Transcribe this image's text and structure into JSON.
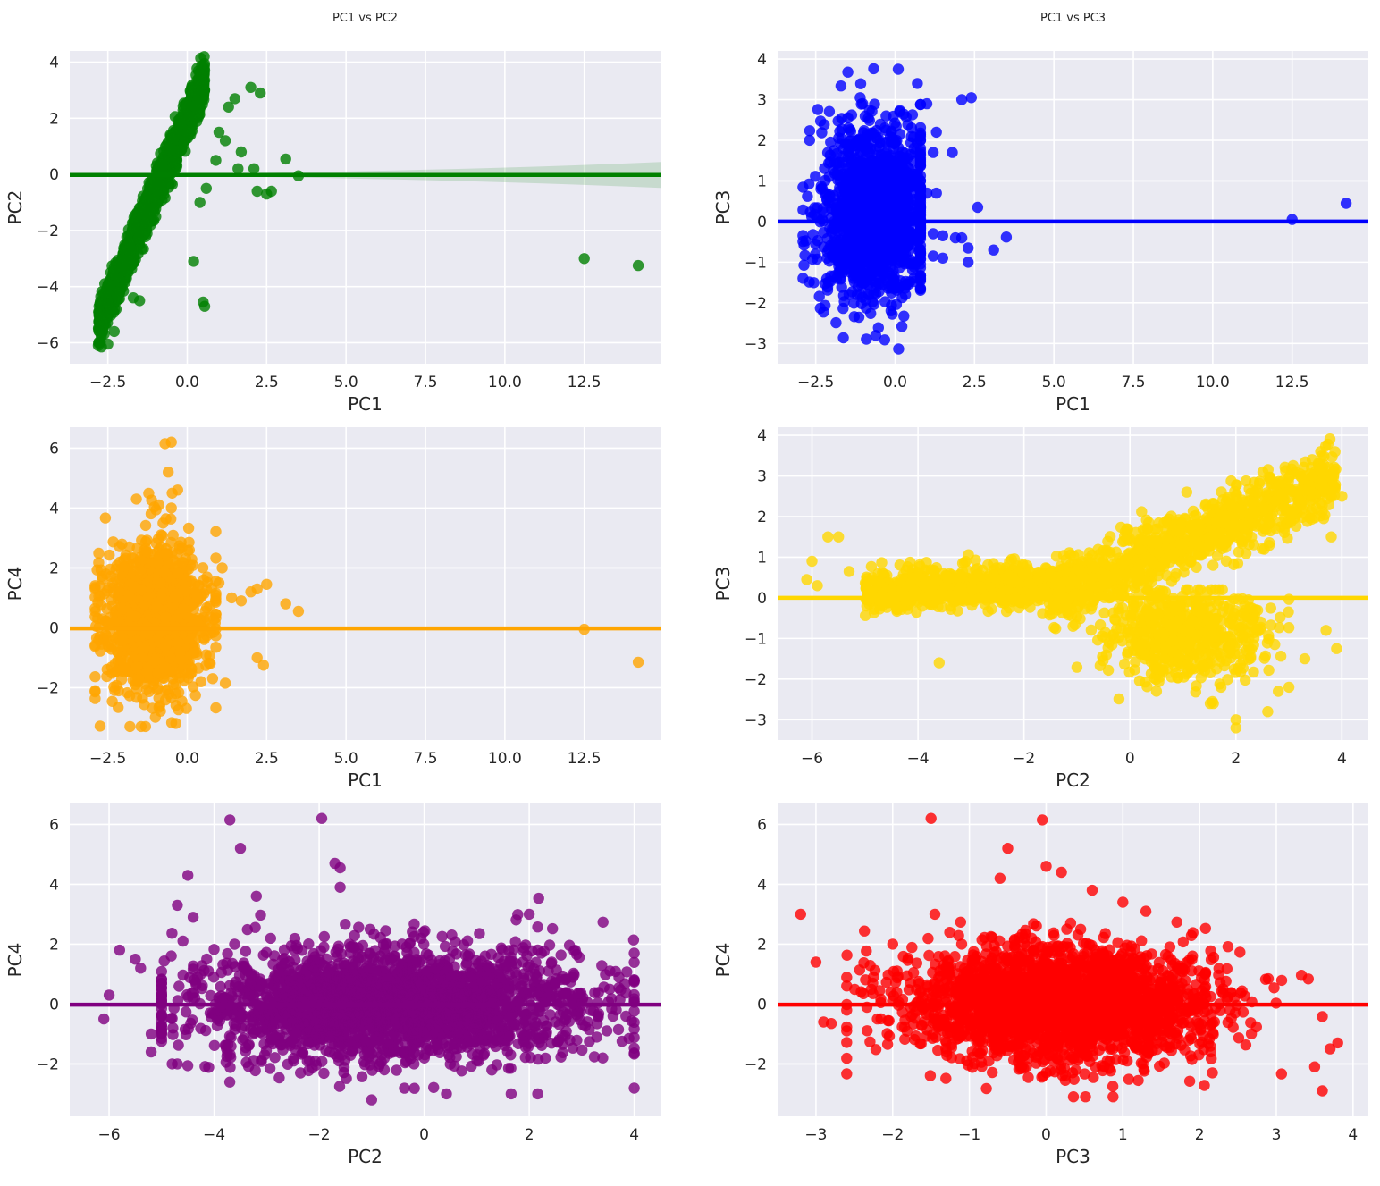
{
  "figure_background": "#ffffff",
  "panel_background": "#eaeaf2",
  "grid_color": "#ffffff",
  "chart_data": [
    {
      "type": "scatter",
      "title": "PC1 vs PC2",
      "xlabel": "PC1",
      "ylabel": "PC2",
      "xlim": [
        -3.7,
        14.9
      ],
      "ylim": [
        -6.75,
        4.4
      ],
      "xticks": [
        -2.5,
        0.0,
        2.5,
        5.0,
        7.5,
        10.0,
        12.5
      ],
      "xtick_labels": [
        "−2.5",
        "0.0",
        "2.5",
        "5.0",
        "7.5",
        "10.0",
        "12.5"
      ],
      "yticks": [
        -6,
        -4,
        -2,
        0,
        2,
        4
      ],
      "ytick_labels": [
        "−6",
        "−4",
        "−2",
        "0",
        "2",
        "4"
      ],
      "color": "#008000",
      "grid": true,
      "regression_line": {
        "slope": 0.0,
        "intercept": -0.02,
        "ci_start": 0.03,
        "ci_end": 0.46
      },
      "cloud": {
        "type": "band",
        "n": 1400,
        "xr": [
          -2.8,
          0.55
        ],
        "slope": 2.6,
        "x0": -0.3,
        "y0": 1.2,
        "spread": 0.7
      },
      "points": [
        [
          -2.8,
          -6.1
        ],
        [
          -2.7,
          -6.15
        ],
        [
          -2.5,
          -6.05
        ],
        [
          -2.3,
          -5.6
        ],
        [
          -1.7,
          -4.4
        ],
        [
          -1.5,
          -4.5
        ],
        [
          0.55,
          -4.7
        ],
        [
          0.5,
          -4.55
        ],
        [
          0.2,
          -3.1
        ],
        [
          0.4,
          -1.0
        ],
        [
          0.6,
          -0.5
        ],
        [
          0.9,
          0.5
        ],
        [
          1.0,
          1.5
        ],
        [
          1.3,
          2.4
        ],
        [
          1.5,
          2.7
        ],
        [
          1.2,
          1.2
        ],
        [
          1.7,
          0.8
        ],
        [
          1.6,
          0.2
        ],
        [
          2.0,
          3.1
        ],
        [
          2.3,
          2.9
        ],
        [
          2.1,
          0.2
        ],
        [
          2.2,
          -0.6
        ],
        [
          2.5,
          -0.7
        ],
        [
          2.65,
          -0.6
        ],
        [
          3.1,
          0.55
        ],
        [
          3.5,
          -0.05
        ],
        [
          12.5,
          -3.0
        ],
        [
          14.2,
          -3.25
        ]
      ]
    },
    {
      "type": "scatter",
      "title": "PC1 vs PC3",
      "xlabel": "PC1",
      "ylabel": "PC3",
      "xlim": [
        -3.7,
        14.9
      ],
      "ylim": [
        -3.5,
        4.2
      ],
      "xticks": [
        -2.5,
        0.0,
        2.5,
        5.0,
        7.5,
        10.0,
        12.5
      ],
      "xtick_labels": [
        "−2.5",
        "0.0",
        "2.5",
        "5.0",
        "7.5",
        "10.0",
        "12.5"
      ],
      "yticks": [
        -3,
        -2,
        -1,
        0,
        1,
        2,
        3,
        4
      ],
      "ytick_labels": [
        "−3",
        "−2",
        "−1",
        "0",
        "1",
        "2",
        "3",
        "4"
      ],
      "color": "#0000ff",
      "grid": true,
      "regression_line": {
        "slope": 0.0,
        "intercept": 0.0,
        "ci_start": 0.0,
        "ci_end": 0.0
      },
      "cloud": {
        "type": "blob",
        "n": 1400,
        "cx": -0.6,
        "cy": 0.2,
        "sx": 0.85,
        "sy": 1.1,
        "xr": [
          -2.9,
          0.8
        ],
        "yr": [
          -3.2,
          3.8
        ]
      },
      "points": [
        [
          0.1,
          3.75
        ],
        [
          0.7,
          3.4
        ],
        [
          1.0,
          2.9
        ],
        [
          1.3,
          2.2
        ],
        [
          1.2,
          1.7
        ],
        [
          1.8,
          1.7
        ],
        [
          2.1,
          3.0
        ],
        [
          2.4,
          3.05
        ],
        [
          1.0,
          0.7
        ],
        [
          1.3,
          0.7
        ],
        [
          1.2,
          -0.3
        ],
        [
          1.5,
          -0.35
        ],
        [
          1.9,
          -0.4
        ],
        [
          2.1,
          -0.4
        ],
        [
          2.3,
          -0.65
        ],
        [
          2.3,
          -1.0
        ],
        [
          2.6,
          0.35
        ],
        [
          3.1,
          -0.7
        ],
        [
          3.5,
          -0.38
        ],
        [
          1.2,
          -0.85
        ],
        [
          1.5,
          -0.9
        ],
        [
          12.5,
          0.05
        ],
        [
          14.2,
          0.45
        ]
      ]
    },
    {
      "type": "scatter",
      "title": "",
      "xlabel": "PC1",
      "ylabel": "PC4",
      "xlim": [
        -3.7,
        14.9
      ],
      "ylim": [
        -3.75,
        6.7
      ],
      "xticks": [
        -2.5,
        0.0,
        2.5,
        5.0,
        7.5,
        10.0,
        12.5
      ],
      "xtick_labels": [
        "−2.5",
        "0.0",
        "2.5",
        "5.0",
        "7.5",
        "10.0",
        "12.5"
      ],
      "yticks": [
        -2,
        0,
        2,
        4,
        6
      ],
      "ytick_labels": [
        "−2",
        "0",
        "2",
        "4",
        "6"
      ],
      "color": "#ffa500",
      "grid": true,
      "regression_line": {
        "slope": 0.0,
        "intercept": -0.02,
        "ci_start": 0.0,
        "ci_end": 0.0
      },
      "cloud": {
        "type": "blob",
        "n": 1400,
        "cx": -1.0,
        "cy": 0.3,
        "sx": 0.8,
        "sy": 1.25,
        "xr": [
          -2.9,
          0.9
        ],
        "yr": [
          -3.3,
          4.5
        ]
      },
      "points": [
        [
          -1.6,
          4.3
        ],
        [
          -0.7,
          6.15
        ],
        [
          -0.5,
          6.2
        ],
        [
          -0.6,
          5.2
        ],
        [
          -0.3,
          4.6
        ],
        [
          -0.5,
          4.0
        ],
        [
          1.0,
          1.5
        ],
        [
          1.1,
          2.0
        ],
        [
          1.4,
          1.0
        ],
        [
          1.7,
          0.9
        ],
        [
          2.0,
          1.2
        ],
        [
          2.2,
          1.3
        ],
        [
          2.5,
          1.45
        ],
        [
          3.1,
          0.8
        ],
        [
          3.5,
          0.55
        ],
        [
          2.2,
          -1.0
        ],
        [
          2.4,
          -1.25
        ],
        [
          1.2,
          -1.85
        ],
        [
          0.8,
          -1.7
        ],
        [
          12.5,
          -0.05
        ],
        [
          14.2,
          -1.15
        ]
      ]
    },
    {
      "type": "scatter",
      "title": "",
      "xlabel": "PC2",
      "ylabel": "PC3",
      "xlim": [
        -6.65,
        4.5
      ],
      "ylim": [
        -3.5,
        4.2
      ],
      "xticks": [
        -6,
        -4,
        -2,
        0,
        2,
        4
      ],
      "xtick_labels": [
        "−6",
        "−4",
        "−2",
        "0",
        "2",
        "4"
      ],
      "yticks": [
        -3,
        -2,
        -1,
        0,
        1,
        2,
        3,
        4
      ],
      "ytick_labels": [
        "−3",
        "−2",
        "−1",
        "0",
        "1",
        "2",
        "3",
        "4"
      ],
      "color": "#ffd700",
      "grid": true,
      "regression_line": {
        "slope": 0.0,
        "intercept": 0.0,
        "ci_start": 0.0,
        "ci_end": 0.0
      },
      "clouds": [
        {
          "type": "band",
          "n": 900,
          "xr": [
            -5.0,
            -1.0
          ],
          "slope": 0.05,
          "x0": -3.0,
          "y0": 0.25,
          "spread": 0.45
        },
        {
          "type": "band",
          "n": 1000,
          "xr": [
            -1.5,
            3.9
          ],
          "slope": 0.55,
          "x0": 1.2,
          "y0": 1.5,
          "spread": 0.7
        },
        {
          "type": "blob",
          "n": 600,
          "cx": 1.0,
          "cy": -0.9,
          "sx": 0.8,
          "sy": 0.55,
          "xr": [
            -1.0,
            3.0
          ],
          "yr": [
            -2.6,
            0.2
          ]
        }
      ],
      "points": [
        [
          -6.1,
          0.45
        ],
        [
          -6.0,
          0.9
        ],
        [
          -5.9,
          0.3
        ],
        [
          -5.7,
          1.5
        ],
        [
          -5.5,
          1.5
        ],
        [
          -5.3,
          0.65
        ],
        [
          -3.6,
          -1.6
        ],
        [
          2.0,
          -3.0
        ],
        [
          2.0,
          -3.2
        ],
        [
          2.6,
          -2.8
        ],
        [
          2.8,
          -2.3
        ],
        [
          3.0,
          -2.2
        ],
        [
          3.3,
          -1.5
        ],
        [
          3.9,
          -1.25
        ],
        [
          3.7,
          -0.8
        ],
        [
          4.0,
          2.5
        ],
        [
          3.8,
          1.5
        ],
        [
          3.6,
          3.6
        ]
      ]
    },
    {
      "type": "scatter",
      "title": "",
      "xlabel": "PC2",
      "ylabel": "PC4",
      "xlim": [
        -6.75,
        4.5
      ],
      "ylim": [
        -3.75,
        6.7
      ],
      "xticks": [
        -6,
        -4,
        -2,
        0,
        2,
        4
      ],
      "xtick_labels": [
        "−6",
        "−4",
        "−2",
        "0",
        "2",
        "4"
      ],
      "yticks": [
        -2,
        0,
        2,
        4,
        6
      ],
      "ytick_labels": [
        "−2",
        "0",
        "2",
        "4",
        "6"
      ],
      "color": "#800080",
      "grid": true,
      "regression_line": {
        "slope": 0.0,
        "intercept": -0.02,
        "ci_start": 0.0,
        "ci_end": 0.0
      },
      "cloud": {
        "type": "blob",
        "n": 2400,
        "cx": -0.6,
        "cy": 0.0,
        "sx": 1.9,
        "sy": 0.95,
        "xr": [
          -5.0,
          4.0
        ],
        "yr": [
          -3.0,
          3.6
        ]
      },
      "points": [
        [
          -6.1,
          -0.5
        ],
        [
          -6.0,
          0.3
        ],
        [
          -5.8,
          1.8
        ],
        [
          -5.5,
          1.5
        ],
        [
          -5.4,
          1.2
        ],
        [
          -5.2,
          -1.0
        ],
        [
          -5.2,
          -1.6
        ],
        [
          -4.7,
          3.3
        ],
        [
          -4.5,
          4.3
        ],
        [
          -4.4,
          2.9
        ],
        [
          -3.7,
          6.15
        ],
        [
          -3.5,
          5.2
        ],
        [
          -1.95,
          6.2
        ],
        [
          -1.7,
          4.7
        ],
        [
          -1.6,
          4.55
        ],
        [
          -1.6,
          3.9
        ],
        [
          2.0,
          3.0
        ],
        [
          3.9,
          -1.15
        ],
        [
          3.7,
          -0.85
        ],
        [
          3.4,
          -1.8
        ],
        [
          -1.0,
          -3.2
        ],
        [
          -4.8,
          -2.0
        ],
        [
          -4.7,
          -2.0
        ]
      ]
    },
    {
      "type": "scatter",
      "title": "",
      "xlabel": "PC3",
      "ylabel": "PC4",
      "xlim": [
        -3.5,
        4.2
      ],
      "ylim": [
        -3.75,
        6.7
      ],
      "xticks": [
        -3,
        -2,
        -1,
        0,
        1,
        2,
        3,
        4
      ],
      "xtick_labels": [
        "−3",
        "−2",
        "−1",
        "0",
        "1",
        "2",
        "3",
        "4"
      ],
      "yticks": [
        -2,
        0,
        2,
        4,
        6
      ],
      "ytick_labels": [
        "−2",
        "0",
        "2",
        "4",
        "6"
      ],
      "color": "#ff0000",
      "grid": true,
      "regression_line": {
        "slope": 0.0,
        "intercept": -0.02,
        "ci_start": 0.0,
        "ci_end": 0.0
      },
      "cloud": {
        "type": "blob",
        "n": 2400,
        "cx": 0.2,
        "cy": 0.0,
        "sx": 1.0,
        "sy": 0.95,
        "xr": [
          -2.6,
          3.6
        ],
        "yr": [
          -3.1,
          3.6
        ]
      },
      "points": [
        [
          -3.2,
          3.0
        ],
        [
          -3.0,
          1.4
        ],
        [
          -2.9,
          -0.6
        ],
        [
          -2.8,
          -0.65
        ],
        [
          -2.0,
          2.0
        ],
        [
          -1.5,
          6.2
        ],
        [
          -1.45,
          3.0
        ],
        [
          -1.1,
          2.0
        ],
        [
          -0.5,
          5.2
        ],
        [
          -0.6,
          4.2
        ],
        [
          -0.05,
          6.15
        ],
        [
          0.0,
          4.6
        ],
        [
          0.2,
          4.4
        ],
        [
          0.6,
          3.8
        ],
        [
          1.0,
          3.4
        ],
        [
          1.3,
          3.1
        ],
        [
          3.5,
          -2.1
        ],
        [
          3.7,
          -1.5
        ],
        [
          3.8,
          -1.3
        ],
        [
          3.6,
          -2.9
        ],
        [
          -1.3,
          -1.6
        ],
        [
          1.9,
          -1.85
        ],
        [
          -2.2,
          -0.5
        ]
      ]
    }
  ]
}
